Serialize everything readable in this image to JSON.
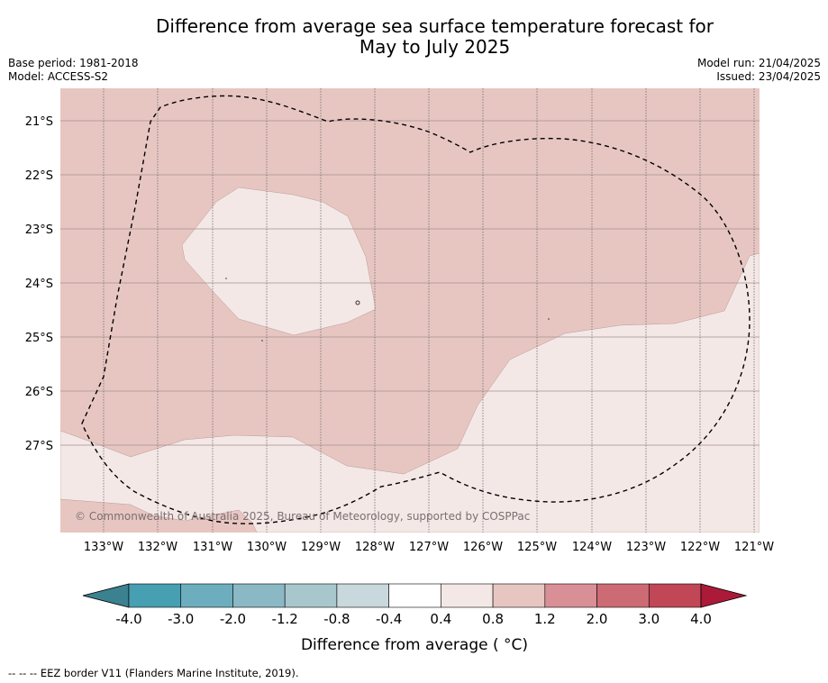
{
  "title_line1": "Difference from average sea surface temperature forecast for",
  "title_line2": "May to July 2025",
  "meta_left": {
    "base_period": "Base period: 1981-2018",
    "model": "Model: ACCESS-S2"
  },
  "meta_right": {
    "model_run": "Model run: 21/04/2025",
    "issued": "Issued: 23/04/2025"
  },
  "copyright": "© Commonwealth of Australia 2025, Bureau of Meteorology, supported by COSPPac",
  "footer": "--  --  -- EEZ border V11 (Flanders Marine Institute, 2019).",
  "map": {
    "lat_labels": [
      "21°S",
      "22°S",
      "23°S",
      "24°S",
      "25°S",
      "26°S",
      "27°S"
    ],
    "lon_labels": [
      "133°W",
      "132°W",
      "131°W",
      "130°W",
      "129°W",
      "128°W",
      "127°W",
      "126°W",
      "125°W",
      "124°W",
      "123°W",
      "122°W",
      "121°W"
    ],
    "colors": {
      "band_0_4_to_0_8": "#f4e8e6",
      "band_0_8_to_1_2": "#e7c6c2"
    }
  },
  "colorbar": {
    "label": "Difference from average ( °C)",
    "ticks": [
      "-4.0",
      "-3.0",
      "-2.0",
      "-1.2",
      "-0.8",
      "-0.4",
      "0.4",
      "0.8",
      "1.2",
      "2.0",
      "3.0",
      "4.0"
    ],
    "colors": [
      "#3b8190",
      "#479fb2",
      "#6caebd",
      "#8ab8c4",
      "#a8c7cd",
      "#c9d8dc",
      "#ffffff",
      "#f4e8e6",
      "#e7c6c2",
      "#d88f95",
      "#cd6b74",
      "#c14756",
      "#ab1a38"
    ]
  }
}
